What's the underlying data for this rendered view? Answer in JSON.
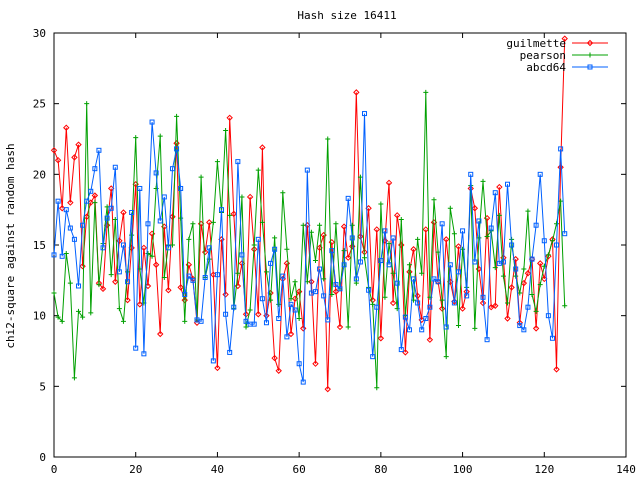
{
  "chart_data": {
    "type": "line",
    "title": "Hash size 16411",
    "xlabel": "",
    "ylabel": "chi2-square against random hash",
    "xlim": [
      0,
      140
    ],
    "ylim": [
      0,
      30
    ],
    "xticks": [
      "0",
      "20",
      "40",
      "60",
      "80",
      "100",
      "120",
      "140"
    ],
    "yticks": [
      "0",
      "5",
      "10",
      "15",
      "20",
      "25",
      "30"
    ],
    "grid": false,
    "legend_position": "top-right",
    "series": [
      {
        "name": "guilmette",
        "color": "#ff0000",
        "marker": "diamond",
        "values": [
          21.7,
          21.0,
          17.6,
          23.3,
          18.0,
          21.2,
          22.1,
          13.5,
          17.0,
          18.0,
          18.5,
          12.3,
          11.9,
          16.4,
          19.0,
          12.4,
          15.3,
          17.3,
          11.1,
          14.8,
          19.3,
          10.8,
          14.8,
          12.1,
          15.8,
          13.6,
          8.7,
          16.3,
          11.8,
          17.0,
          22.2,
          12.0,
          11.1,
          13.6,
          12.6,
          9.5,
          16.5,
          14.5,
          16.6,
          12.9,
          6.3,
          15.4,
          11.5,
          24.0,
          17.2,
          12.1,
          13.7,
          10.1,
          18.4,
          14.7,
          10.1,
          21.9,
          10.0,
          11.6,
          7.0,
          6.1,
          12.6,
          13.7,
          8.7,
          11.2,
          11.7,
          9.1,
          16.4,
          12.4,
          6.6,
          14.8,
          15.7,
          4.8,
          15.2,
          11.7,
          9.2,
          16.3,
          14.1,
          14.9,
          25.8,
          15.6,
          14.5,
          17.6,
          11.1,
          16.1,
          8.4,
          15.3,
          19.4,
          10.9,
          17.1,
          15.0,
          7.4,
          13.1,
          14.7,
          11.4,
          9.7,
          16.1,
          8.3,
          16.6,
          12.4,
          10.5,
          15.4,
          12.4,
          11.0,
          14.9,
          10.5,
          11.7,
          19.0,
          17.6,
          13.3,
          10.9,
          16.9,
          10.6,
          10.7,
          19.1,
          14.1,
          9.8,
          12.0,
          14.0,
          9.5,
          12.3,
          13.0,
          14.0,
          9.1,
          13.7,
          12.6,
          14.2,
          15.4,
          6.2,
          20.5,
          29.6
        ]
      },
      {
        "name": "pearson",
        "color": "#00a000",
        "marker": "plus",
        "values": [
          11.6,
          9.9,
          9.6,
          14.4,
          12.3,
          5.6,
          10.3,
          9.9,
          25.0,
          10.2,
          18.0,
          12.2,
          15.1,
          17.7,
          12.9,
          16.8,
          10.5,
          9.6,
          13.1,
          15.7,
          22.6,
          13.3,
          10.9,
          14.4,
          14.2,
          19.0,
          22.7,
          12.7,
          15.0,
          15.0,
          24.1,
          16.9,
          9.6,
          15.4,
          16.5,
          9.7,
          19.8,
          12.7,
          14.0,
          16.6,
          20.9,
          17.3,
          23.1,
          17.1,
          10.5,
          13.0,
          18.4,
          9.2,
          10.4,
          15.0,
          20.3,
          16.6,
          13.1,
          11.1,
          15.5,
          10.8,
          18.7,
          14.7,
          11.2,
          12.4,
          9.8,
          16.4,
          12.4,
          15.9,
          13.9,
          16.4,
          12.6,
          22.5,
          11.5,
          16.5,
          11.9,
          14.6,
          9.2,
          16.4,
          12.3,
          19.8,
          14.1,
          12.0,
          10.8,
          4.9,
          17.9,
          11.3,
          15.1,
          13.0,
          10.5,
          16.8,
          10.0,
          13.6,
          11.1,
          15.4,
          13.0,
          25.8,
          11.3,
          18.2,
          14.5,
          11.1,
          7.1,
          17.6,
          15.8,
          9.3,
          14.7,
          12.0,
          19.2,
          9.1,
          15.5,
          19.5,
          15.6,
          16.0,
          13.4,
          17.1,
          12.8,
          10.9,
          15.4,
          12.8,
          11.6,
          13.3,
          17.4,
          11.5,
          10.3,
          12.2,
          13.5,
          14.3,
          15.3,
          16.5,
          18.1,
          10.7
        ]
      },
      {
        "name": "abcd64",
        "color": "#0060ff",
        "marker": "square",
        "values": [
          14.3,
          18.1,
          14.2,
          17.5,
          16.2,
          15.4,
          12.1,
          16.4,
          18.1,
          18.8,
          20.4,
          21.7,
          14.8,
          16.9,
          17.6,
          20.5,
          13.1,
          15.0,
          12.4,
          17.3,
          7.7,
          19.0,
          7.3,
          16.5,
          23.7,
          20.1,
          16.7,
          18.4,
          14.8,
          20.4,
          21.8,
          19.0,
          11.5,
          12.8,
          12.5,
          9.7,
          9.6,
          12.7,
          14.8,
          6.8,
          12.9,
          17.5,
          10.1,
          7.4,
          10.6,
          20.9,
          14.3,
          9.6,
          9.4,
          9.4,
          15.4,
          11.2,
          9.5,
          13.7,
          14.7,
          9.8,
          12.8,
          8.5,
          10.8,
          10.4,
          6.6,
          5.3,
          20.3,
          11.6,
          11.7,
          13.3,
          11.4,
          9.7,
          14.6,
          12.2,
          11.9,
          13.6,
          18.3,
          15.5,
          12.6,
          13.8,
          24.3,
          11.8,
          7.1,
          10.6,
          13.9,
          16.0,
          13.6,
          15.5,
          12.3,
          7.6,
          9.9,
          9.0,
          12.6,
          10.9,
          9.0,
          9.8,
          10.6,
          12.6,
          12.4,
          16.5,
          9.2,
          13.6,
          10.9,
          13.1,
          16.0,
          11.4,
          20.0,
          13.8,
          16.7,
          11.3,
          8.3,
          16.2,
          18.7,
          13.7,
          13.8,
          19.3,
          15.0,
          13.3,
          9.3,
          9.0,
          10.6,
          14.0,
          16.4,
          20.0,
          15.3,
          10.0,
          8.4,
          15.0,
          21.8,
          15.8
        ]
      }
    ]
  }
}
